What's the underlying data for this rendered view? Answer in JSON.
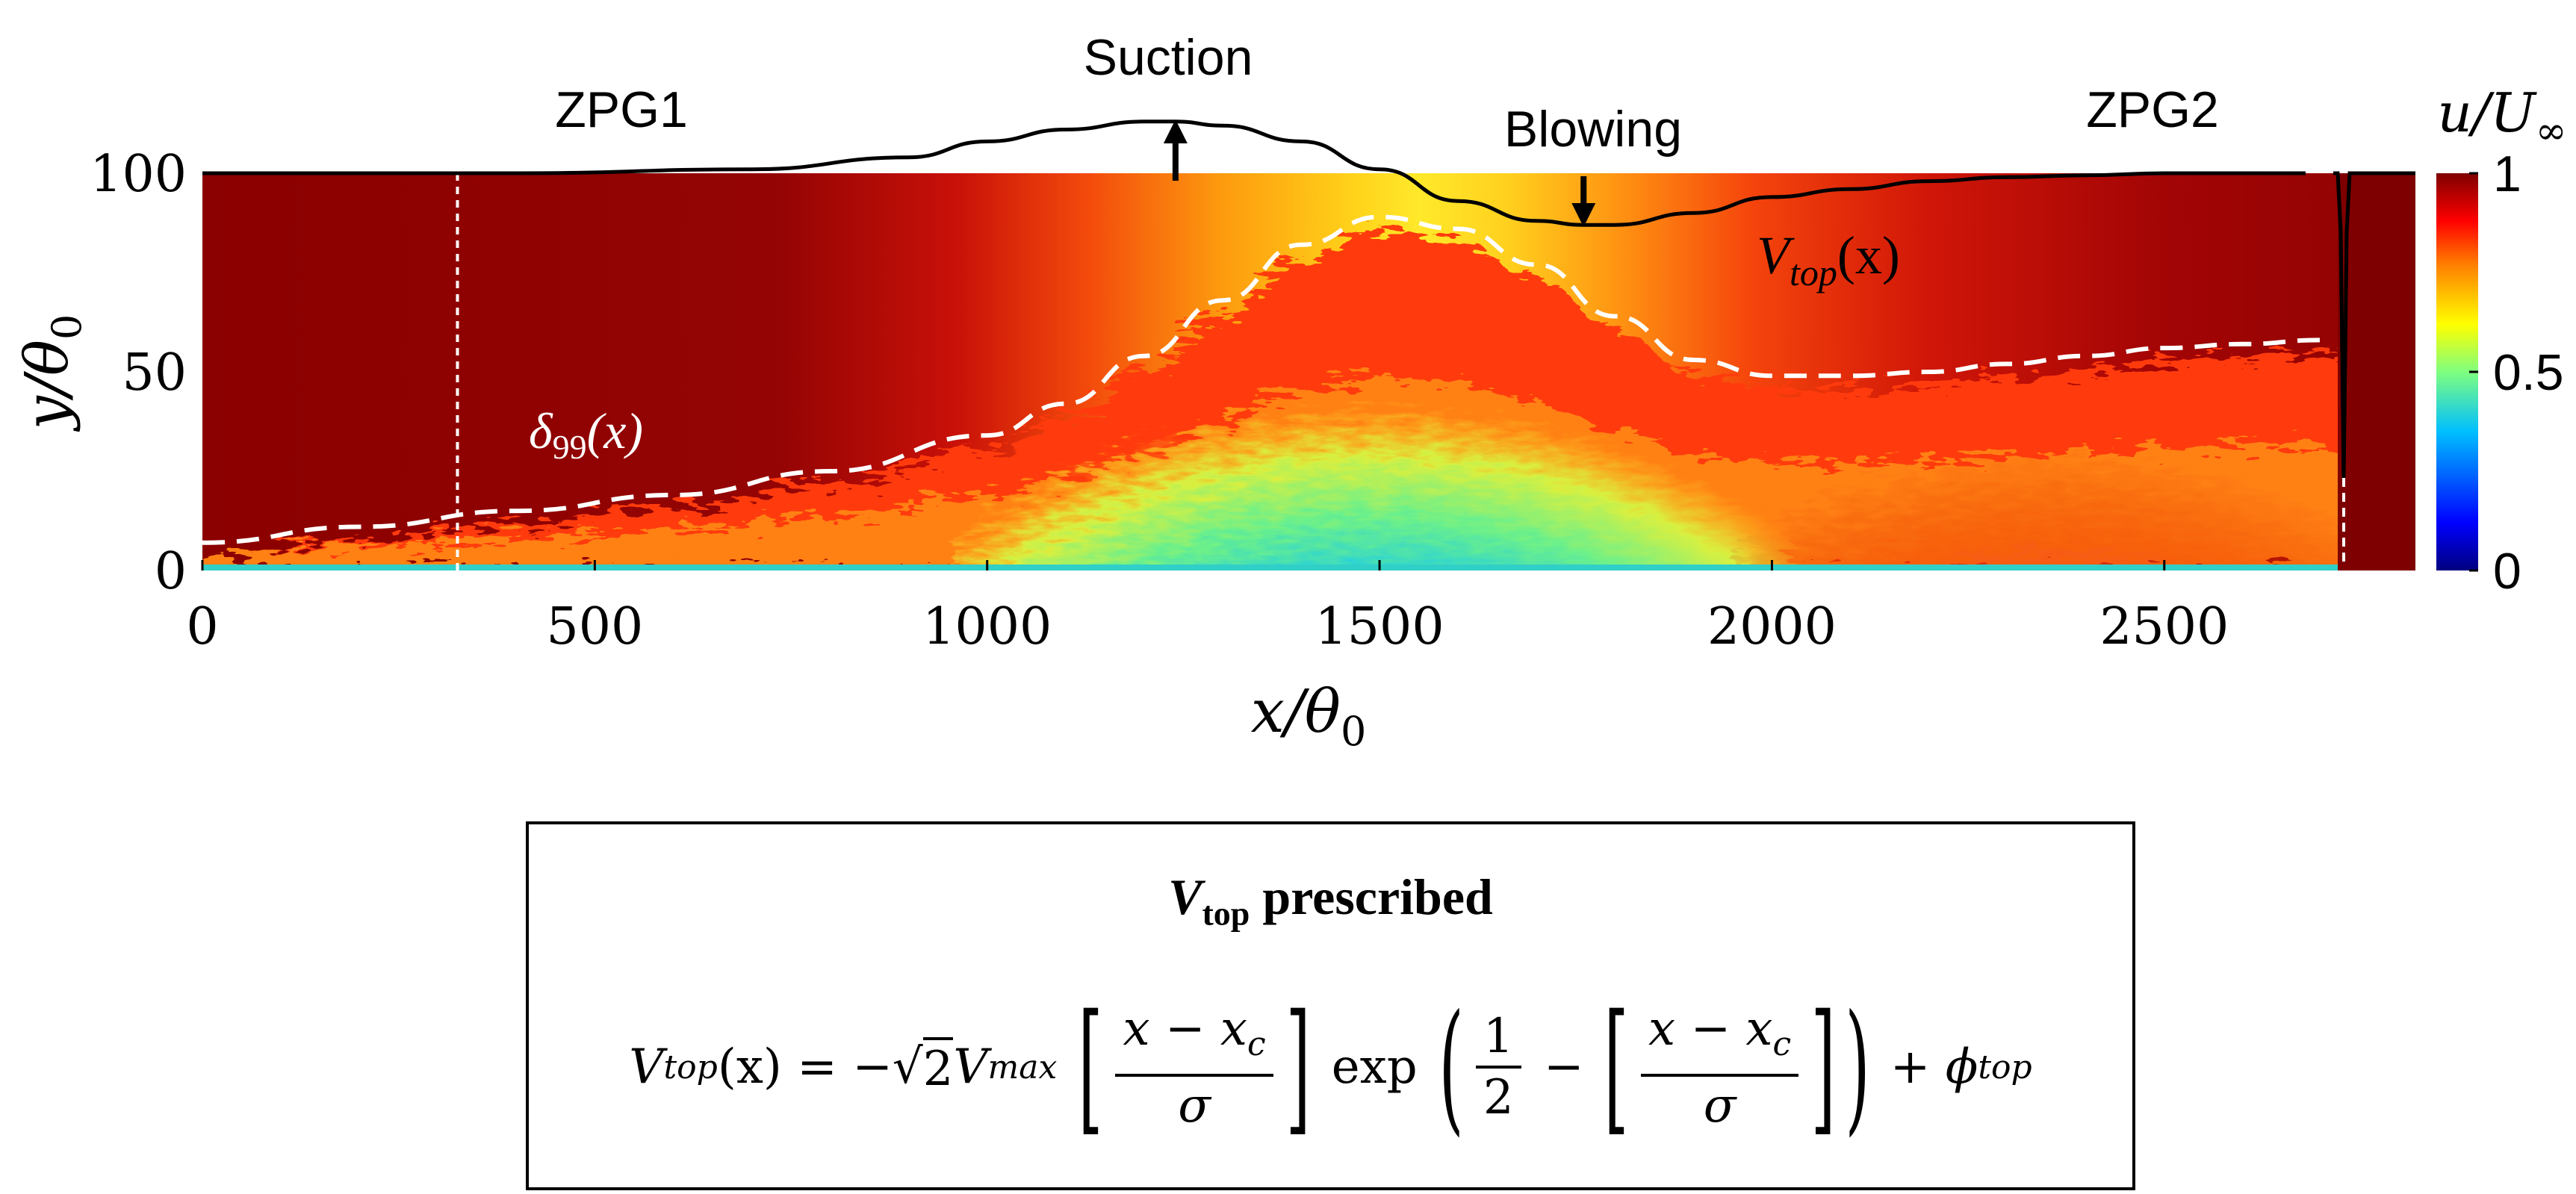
{
  "chart_data": {
    "type": "heatmap",
    "title": "",
    "xlabel": "x/θ",
    "xlabel_sub": "0",
    "ylabel": "y/θ",
    "ylabel_sub": "0",
    "xlim": [
      0,
      2820
    ],
    "ylim": [
      0,
      100
    ],
    "xticks": [
      0,
      500,
      1000,
      1500,
      2000,
      2500
    ],
    "yticks": [
      0,
      50,
      100
    ],
    "colorbar": {
      "label": "u/U",
      "label_sub": "∞",
      "range": [
        0,
        1
      ],
      "ticks": [
        0,
        0.5,
        1
      ],
      "colormap": [
        "#00007f",
        "#0000ff",
        "#007fff",
        "#00ffff",
        "#7fff7f",
        "#ffff00",
        "#ff7f00",
        "#ff0000",
        "#7f0000"
      ]
    },
    "delta99": {
      "label": "δ",
      "label_sub": "99",
      "label_arg": "(x)",
      "x": [
        0,
        200,
        400,
        600,
        800,
        1000,
        1100,
        1200,
        1300,
        1400,
        1500,
        1600,
        1700,
        1800,
        1900,
        2000,
        2100,
        2200,
        2300,
        2400,
        2500,
        2600,
        2700
      ],
      "y": [
        7,
        11,
        15,
        19,
        25,
        34,
        42,
        54,
        68,
        82,
        89,
        86,
        77,
        64,
        53,
        49,
        49,
        50,
        52,
        54,
        56,
        57,
        58
      ]
    },
    "vtop_profile": {
      "label": "V",
      "label_sub": "top",
      "label_arg": "(x)",
      "x": [
        0,
        400,
        700,
        900,
        1000,
        1100,
        1200,
        1240,
        1300,
        1400,
        1500,
        1600,
        1700,
        1760,
        1800,
        1900,
        2000,
        2100,
        2200,
        2300,
        2400,
        2500,
        2600,
        2680
      ],
      "y": [
        100,
        100,
        101,
        104,
        108,
        111,
        113,
        113,
        112,
        108,
        101,
        93,
        88,
        87,
        87,
        90,
        94,
        96,
        98,
        99,
        99.5,
        100,
        100,
        100
      ]
    },
    "annotations": {
      "zpg1": "ZPG1",
      "zpg2": "ZPG2",
      "suction": "Suction",
      "blowing": "Blowing",
      "suction_x": 1240,
      "blowing_x": 1760,
      "reference_x": 325
    }
  },
  "box": {
    "title_symbol": "V",
    "title_sub": "top",
    "title_rest": " prescribed",
    "eq_lhs": "V",
    "eq_lhs_sub": "top",
    "eq_lhs_arg": "(x)",
    "eq_equals": " = −",
    "eq_sqrt": "√",
    "eq_two": "2",
    "eq_vmax": "V",
    "eq_vmax_sub": "max",
    "eq_frac_num": "x − x",
    "eq_frac_num_sub": "c",
    "eq_frac_den": "σ",
    "eq_exp": "exp",
    "eq_half_num": "1",
    "eq_half_den": "2",
    "eq_minus": " − ",
    "eq_frac2_num": "x − x",
    "eq_frac2_num_sub": "c",
    "eq_frac2_den": "σ",
    "eq_plus": " + ",
    "eq_phi": "ϕ",
    "eq_phi_sub": "top",
    "lbracket": "[",
    "rbracket": "]",
    "lparen": "(",
    "rparen": ")"
  }
}
